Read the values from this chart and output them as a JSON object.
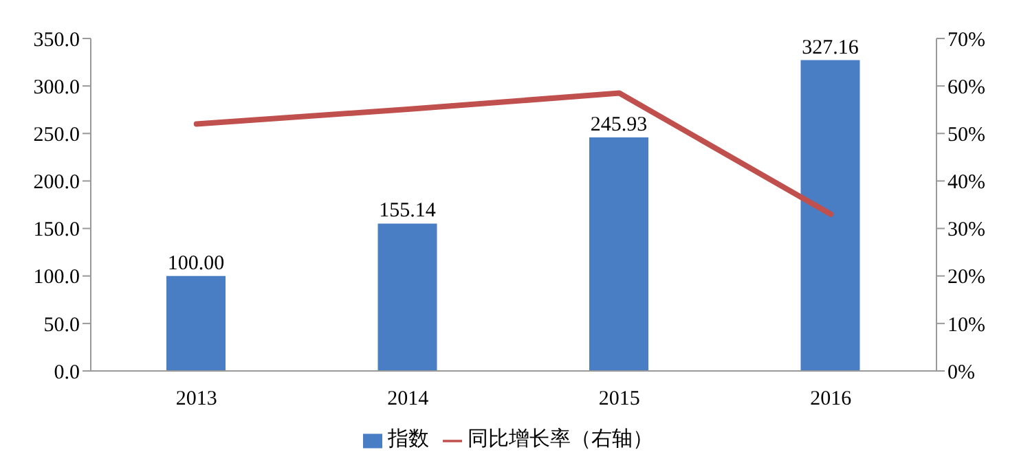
{
  "chart_data": {
    "type": "bar",
    "categories": [
      "2013",
      "2014",
      "2015",
      "2016"
    ],
    "series": [
      {
        "name": "指数",
        "color": "#4a7ec4",
        "values": [
          100.0,
          155.14,
          245.93,
          327.16
        ],
        "value_labels": [
          "100.00",
          "155.14",
          "245.93",
          "327.16"
        ]
      },
      {
        "name": "同比增长率（右轴）",
        "type": "line",
        "axis": "y2",
        "color": "#c0504d",
        "values": [
          52,
          55.1,
          58.5,
          33
        ]
      }
    ],
    "ylim": [
      0,
      350
    ],
    "yticks": [
      {
        "value": 0,
        "label": "0.0"
      },
      {
        "value": 50,
        "label": "50.0"
      },
      {
        "value": 100,
        "label": "100.0"
      },
      {
        "value": 150,
        "label": "150.0"
      },
      {
        "value": 200,
        "label": "200.0"
      },
      {
        "value": 250,
        "label": "250.0"
      },
      {
        "value": 300,
        "label": "300.0"
      },
      {
        "value": 350,
        "label": "350.0"
      }
    ],
    "y2lim": [
      0,
      70
    ],
    "y2ticks": [
      {
        "value": 0,
        "label": "0%"
      },
      {
        "value": 10,
        "label": "10%"
      },
      {
        "value": 20,
        "label": "20%"
      },
      {
        "value": 30,
        "label": "30%"
      },
      {
        "value": 40,
        "label": "40%"
      },
      {
        "value": 50,
        "label": "50%"
      },
      {
        "value": 60,
        "label": "60%"
      },
      {
        "value": 70,
        "label": "70%"
      }
    ],
    "grid": false,
    "legend": "bottom",
    "marker": "none",
    "line_style": "solid"
  }
}
